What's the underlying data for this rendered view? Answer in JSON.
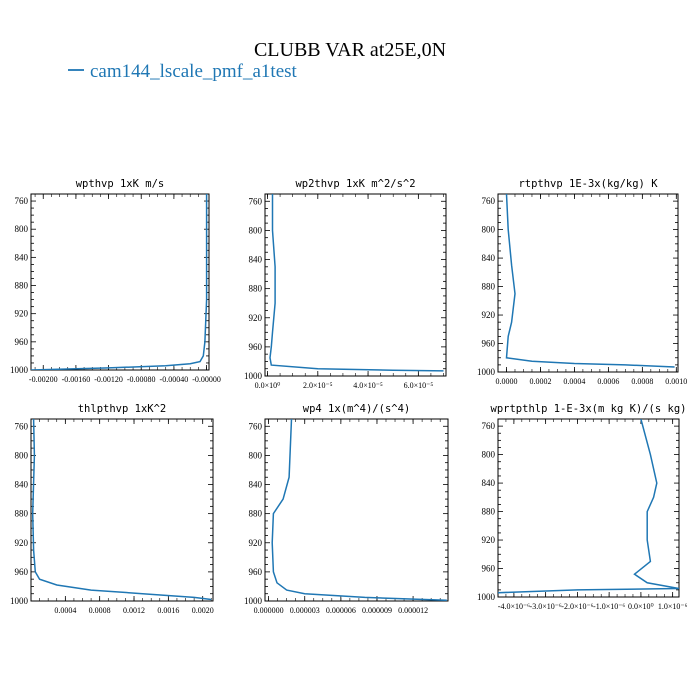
{
  "figure": {
    "title": "CLUBB VAR at25E,0N",
    "legend_label": "cam144_lscale_pmf_a1test",
    "legend_color": "#1f77b4"
  },
  "chart_data": [
    {
      "type": "line",
      "title": "wpthvp  1xK m/s",
      "ylim": [
        1000,
        750
      ],
      "y_ticks": [
        "760",
        "800",
        "840",
        "880",
        "920",
        "960",
        "1000"
      ],
      "xlim": [
        -0.00215,
        3e-05
      ],
      "x_ticks": [
        {
          "v": -0.002,
          "label": "-0.00200"
        },
        {
          "v": -0.0016,
          "label": "-0.00160"
        },
        {
          "v": -0.0012,
          "label": "-0.00120"
        },
        {
          "v": -0.0008,
          "label": "-0.00080"
        },
        {
          "v": -0.0004,
          "label": "-0.00040"
        },
        {
          "v": 0.0,
          "label": "-0.00000"
        }
      ],
      "series": [
        {
          "color": "#1f77b4",
          "x": [
            0.0,
            0.0,
            0.0,
            -2e-05,
            -4e-05,
            -8e-05,
            -0.0002,
            -0.0005,
            -0.0012,
            -0.00215
          ],
          "y": [
            750,
            800,
            900,
            960,
            980,
            988,
            991,
            994,
            997,
            1000
          ]
        }
      ]
    },
    {
      "type": "line",
      "title": "wp2thvp  1xK m^2/s^2",
      "ylim": [
        1000,
        750
      ],
      "y_ticks": [
        "760",
        "800",
        "840",
        "880",
        "920",
        "960",
        "1000"
      ],
      "xlim": [
        -1e-06,
        7.1e-05
      ],
      "x_ticks": [
        {
          "v": 0.0,
          "label": "0.0×10⁰"
        },
        {
          "v": 2e-05,
          "label": "2.0×10⁻⁵"
        },
        {
          "v": 4e-05,
          "label": "4.0×10⁻⁵"
        },
        {
          "v": 6e-05,
          "label": "6.0×10⁻⁵"
        }
      ],
      "series": [
        {
          "color": "#1f77b4",
          "x": [
            2e-06,
            2e-06,
            3e-06,
            3e-06,
            2e-06,
            1.5e-06,
            1e-06,
            1.5e-06,
            2e-05,
            5e-05,
            7e-05
          ],
          "y": [
            750,
            800,
            850,
            900,
            940,
            960,
            975,
            985,
            990,
            992,
            993
          ]
        }
      ]
    },
    {
      "type": "line",
      "title": "rtpthvp  1E-3x(kg/kg) K",
      "ylim": [
        1000,
        750
      ],
      "y_ticks": [
        "760",
        "800",
        "840",
        "880",
        "920",
        "960",
        "1000"
      ],
      "xlim": [
        -5e-05,
        0.00101
      ],
      "x_ticks": [
        {
          "v": 0.0,
          "label": "0.0000"
        },
        {
          "v": 0.0002,
          "label": "0.0002"
        },
        {
          "v": 0.0004,
          "label": "0.0004"
        },
        {
          "v": 0.0006,
          "label": "0.0006"
        },
        {
          "v": 0.0008,
          "label": "0.0008"
        },
        {
          "v": 0.001,
          "label": "0.0010"
        }
      ],
      "series": [
        {
          "color": "#1f77b4",
          "x": [
            0.0,
            1e-05,
            3e-05,
            5e-05,
            4e-05,
            3e-05,
            1e-05,
            0.0,
            0.00015,
            0.0004,
            0.0007,
            0.00099
          ],
          "y": [
            750,
            800,
            850,
            890,
            910,
            930,
            950,
            980,
            985,
            988,
            990,
            993
          ]
        }
      ]
    },
    {
      "type": "line",
      "title": "thlpthvp  1xK^2",
      "ylim": [
        1000,
        750
      ],
      "y_ticks": [
        "760",
        "800",
        "840",
        "880",
        "920",
        "960",
        "1000"
      ],
      "xlim": [
        0.0,
        0.00212
      ],
      "x_ticks": [
        {
          "v": 0.0004,
          "label": "0.0004"
        },
        {
          "v": 0.0008,
          "label": "0.0008"
        },
        {
          "v": 0.0012,
          "label": "0.0012"
        },
        {
          "v": 0.0016,
          "label": "0.0016"
        },
        {
          "v": 0.002,
          "label": "0.0020"
        }
      ],
      "series": [
        {
          "color": "#1f77b4",
          "x": [
            3e-05,
            4e-05,
            2e-05,
            3e-05,
            5e-05,
            0.0001,
            0.0003,
            0.0007,
            0.0013,
            0.0019,
            0.0021
          ],
          "y": [
            750,
            800,
            880,
            930,
            960,
            970,
            978,
            985,
            990,
            995,
            998
          ]
        }
      ]
    },
    {
      "type": "line",
      "title": "wp4  1x(m^4)/(s^4)",
      "ylim": [
        1000,
        750
      ],
      "y_ticks": [
        "760",
        "800",
        "840",
        "880",
        "920",
        "960",
        "1000"
      ],
      "xlim": [
        -3e-07,
        1.49e-05
      ],
      "x_ticks": [
        {
          "v": 0.0,
          "label": "0.000000"
        },
        {
          "v": 3e-06,
          "label": "0.000003"
        },
        {
          "v": 6e-06,
          "label": "0.000006"
        },
        {
          "v": 9e-06,
          "label": "0.000009"
        },
        {
          "v": 1.2e-05,
          "label": "0.000012"
        }
      ],
      "series": [
        {
          "color": "#1f77b4",
          "x": [
            1.9e-06,
            1.8e-06,
            1.7e-06,
            1.2e-06,
            4e-07,
            3e-07,
            4e-07,
            7e-07,
            1.5e-06,
            3e-06,
            8e-06,
            1.48e-05
          ],
          "y": [
            750,
            790,
            830,
            860,
            880,
            920,
            960,
            975,
            985,
            990,
            995,
            999
          ]
        }
      ]
    },
    {
      "type": "line",
      "title": "wprtpthlp  1-E-3x(m kg K)/(s kg)",
      "ylim": [
        1000,
        750
      ],
      "y_ticks": [
        "760",
        "800",
        "840",
        "880",
        "920",
        "960",
        "1000"
      ],
      "xlim": [
        -4.5e-06,
        1.2e-06
      ],
      "x_ticks": [
        {
          "v": -4e-06,
          "label": "-4.0×10⁻⁶"
        },
        {
          "v": -3e-06,
          "label": "-3.0×10⁻⁶"
        },
        {
          "v": -2e-06,
          "label": "-2.0×10⁻⁶"
        },
        {
          "v": -1e-06,
          "label": "-1.0×10⁻⁶"
        },
        {
          "v": 0.0,
          "label": "0.0×10⁰"
        },
        {
          "v": 1e-06,
          "label": "1.0×10⁻⁶"
        }
      ],
      "series": [
        {
          "color": "#1f77b4",
          "x": [
            0.0,
            3e-07,
            5e-07,
            4e-07,
            2e-07,
            2e-07,
            3e-07,
            -2e-07,
            2e-07,
            1.2e-06,
            -2e-06,
            -4.5e-06
          ],
          "y": [
            750,
            800,
            840,
            860,
            880,
            920,
            950,
            968,
            980,
            988,
            990,
            994
          ]
        }
      ]
    }
  ]
}
